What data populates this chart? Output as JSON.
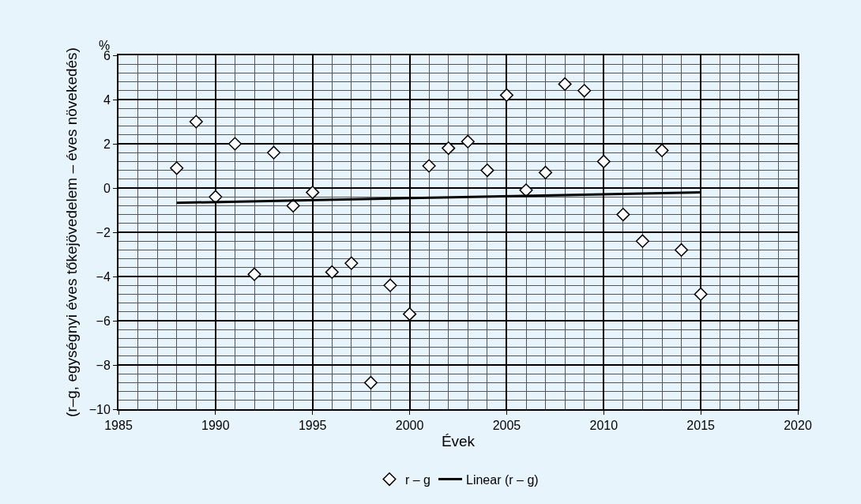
{
  "chart_data": {
    "type": "scatter",
    "xlabel": "Évek",
    "ylabel": "(r–g, egységnyi éves tőkejövedelem – éves növekedés)",
    "annotations": [
      "%"
    ],
    "x": [
      1988,
      1989,
      1990,
      1991,
      1992,
      1993,
      1994,
      1995,
      1996,
      1997,
      1998,
      1999,
      2000,
      2001,
      2002,
      2003,
      2004,
      2005,
      2006,
      2007,
      2008,
      2009,
      2010,
      2011,
      2012,
      2013,
      2014,
      2015
    ],
    "series": [
      {
        "name": "r – g",
        "color": "#ffffff",
        "marker": "diamond",
        "values": [
          0.9,
          3.0,
          -0.4,
          2.0,
          -3.9,
          1.6,
          -0.8,
          -0.2,
          -3.8,
          -3.4,
          -8.8,
          -4.4,
          -5.7,
          1.0,
          1.8,
          2.1,
          0.8,
          4.2,
          -0.1,
          0.7,
          4.7,
          4.4,
          1.2,
          -1.2,
          -2.4,
          1.7,
          -2.8,
          -4.8
        ]
      },
      {
        "name": "Linear (r – g)",
        "type": "line",
        "color": "#000000",
        "line_style": "solid",
        "x": [
          1988,
          2015
        ],
        "values": [
          -0.67,
          -0.2
        ]
      }
    ],
    "xlim": [
      1985,
      2020
    ],
    "xticks": [
      1985,
      1990,
      1995,
      2000,
      2005,
      2010,
      2015,
      2020
    ],
    "ylim": [
      -10,
      6
    ],
    "yticks": [
      {
        "value": -10,
        "label": "−10"
      },
      {
        "value": -8,
        "label": "−8"
      },
      {
        "value": -6,
        "label": "−6"
      },
      {
        "value": -4,
        "label": "−4"
      },
      {
        "value": -2,
        "label": "−2"
      },
      0,
      2,
      4,
      6
    ],
    "grid": true,
    "legend": "bottom"
  }
}
